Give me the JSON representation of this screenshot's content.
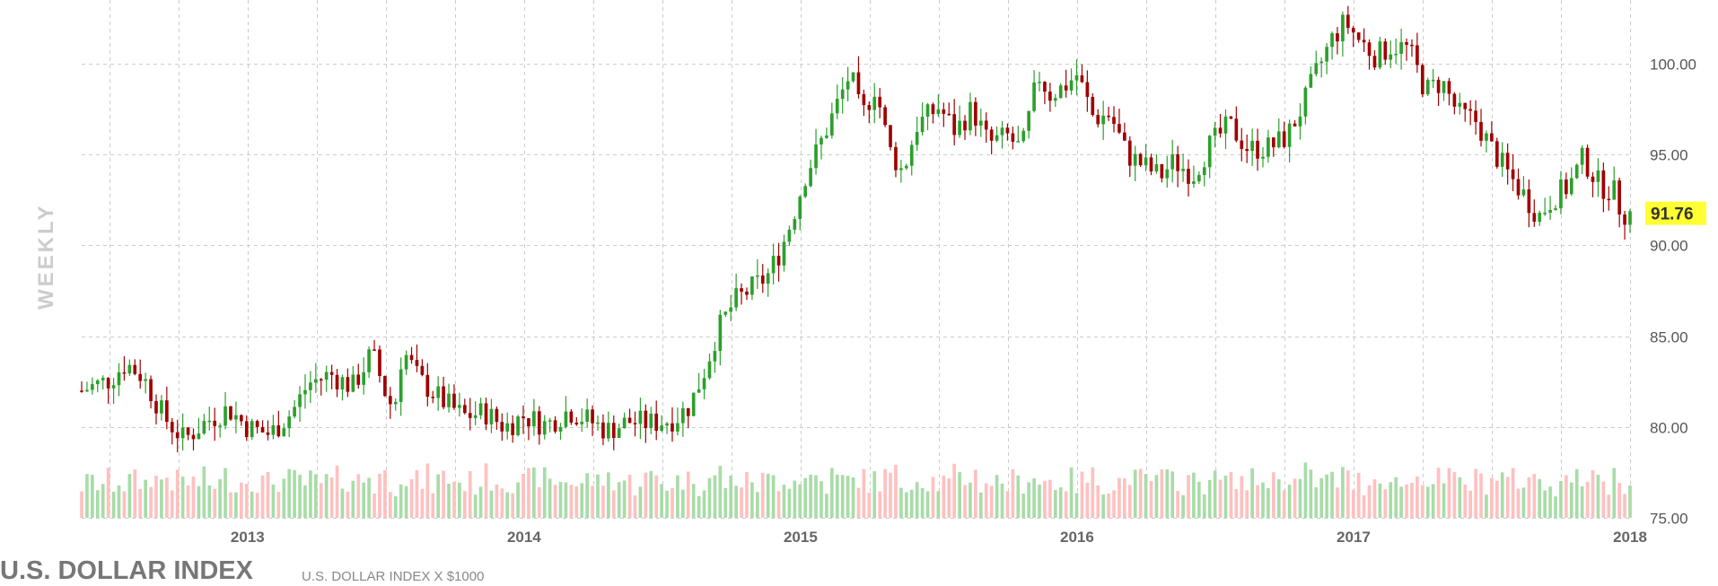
{
  "chart_data": {
    "type": "candlestick",
    "title": "U.S. DOLLAR INDEX",
    "subtitle": "U.S. DOLLAR INDEX X $1000",
    "period_label": "WEEKLY",
    "last_value_label": "91.76",
    "last_value": 91.76,
    "ylim": [
      75,
      103.5
    ],
    "y_ticks": [
      "75.00",
      "80.00",
      "85.00",
      "90.00",
      "95.00",
      "100.00"
    ],
    "x_range": [
      2012.4,
      2018.0
    ],
    "x_ticks": [
      "2013",
      "2014",
      "2015",
      "2016",
      "2017",
      "2018"
    ],
    "grid": true,
    "colors": {
      "up": "#2ca02c",
      "down": "#a00000",
      "volume_up": "#a8dca8",
      "volume_down": "#ffc0c0",
      "badge": "#ffff33"
    },
    "price_path": [
      [
        2012.4,
        82.0
      ],
      [
        2012.5,
        82.6
      ],
      [
        2012.56,
        83.5
      ],
      [
        2012.62,
        82.8
      ],
      [
        2012.7,
        80.5
      ],
      [
        2012.77,
        79.3
      ],
      [
        2012.85,
        80.3
      ],
      [
        2012.93,
        81.0
      ],
      [
        2013.0,
        80.0
      ],
      [
        2013.08,
        79.6
      ],
      [
        2013.16,
        80.8
      ],
      [
        2013.22,
        82.4
      ],
      [
        2013.3,
        82.9
      ],
      [
        2013.38,
        82.2
      ],
      [
        2013.45,
        84.1
      ],
      [
        2013.5,
        81.8
      ],
      [
        2013.53,
        80.9
      ],
      [
        2013.56,
        84.3
      ],
      [
        2013.62,
        82.6
      ],
      [
        2013.7,
        81.5
      ],
      [
        2013.78,
        80.6
      ],
      [
        2013.86,
        80.8
      ],
      [
        2013.93,
        80.0
      ],
      [
        2014.0,
        80.6
      ],
      [
        2014.08,
        80.1
      ],
      [
        2014.16,
        80.9
      ],
      [
        2014.23,
        80.4
      ],
      [
        2014.3,
        79.8
      ],
      [
        2014.38,
        80.3
      ],
      [
        2014.45,
        80.2
      ],
      [
        2014.5,
        80.3
      ],
      [
        2014.55,
        80.5
      ],
      [
        2014.6,
        81.2
      ],
      [
        2014.65,
        83.0
      ],
      [
        2014.7,
        85.3
      ],
      [
        2014.76,
        86.9
      ],
      [
        2014.82,
        87.6
      ],
      [
        2014.88,
        88.3
      ],
      [
        2014.93,
        89.8
      ],
      [
        2014.97,
        91.5
      ],
      [
        2015.02,
        94.0
      ],
      [
        2015.06,
        95.2
      ],
      [
        2015.12,
        97.3
      ],
      [
        2015.18,
        99.5
      ],
      [
        2015.22,
        97.0
      ],
      [
        2015.27,
        98.8
      ],
      [
        2015.32,
        95.3
      ],
      [
        2015.37,
        94.0
      ],
      [
        2015.42,
        96.6
      ],
      [
        2015.5,
        97.6
      ],
      [
        2015.56,
        96.3
      ],
      [
        2015.62,
        97.5
      ],
      [
        2015.68,
        95.6
      ],
      [
        2015.75,
        96.0
      ],
      [
        2015.8,
        95.2
      ],
      [
        2015.86,
        99.4
      ],
      [
        2015.9,
        98.3
      ],
      [
        2015.95,
        98.7
      ],
      [
        2016.0,
        99.4
      ],
      [
        2016.06,
        97.0
      ],
      [
        2016.12,
        97.2
      ],
      [
        2016.18,
        95.0
      ],
      [
        2016.25,
        94.3
      ],
      [
        2016.3,
        93.8
      ],
      [
        2016.35,
        94.6
      ],
      [
        2016.42,
        93.9
      ],
      [
        2016.48,
        95.5
      ],
      [
        2016.55,
        96.6
      ],
      [
        2016.62,
        95.3
      ],
      [
        2016.7,
        95.4
      ],
      [
        2016.76,
        96.0
      ],
      [
        2016.82,
        97.8
      ],
      [
        2016.86,
        99.3
      ],
      [
        2016.92,
        101.3
      ],
      [
        2016.97,
        102.3
      ],
      [
        2017.02,
        101.3
      ],
      [
        2017.08,
        100.4
      ],
      [
        2017.14,
        101.0
      ],
      [
        2017.2,
        100.8
      ],
      [
        2017.26,
        98.5
      ],
      [
        2017.32,
        99.0
      ],
      [
        2017.38,
        97.2
      ],
      [
        2017.44,
        96.9
      ],
      [
        2017.5,
        95.3
      ],
      [
        2017.56,
        93.9
      ],
      [
        2017.62,
        92.7
      ],
      [
        2017.67,
        91.6
      ],
      [
        2017.72,
        92.6
      ],
      [
        2017.78,
        93.3
      ],
      [
        2017.83,
        94.8
      ],
      [
        2017.89,
        93.3
      ],
      [
        2017.94,
        93.0
      ],
      [
        2017.97,
        91.8
      ],
      [
        2018.0,
        91.76
      ]
    ]
  }
}
